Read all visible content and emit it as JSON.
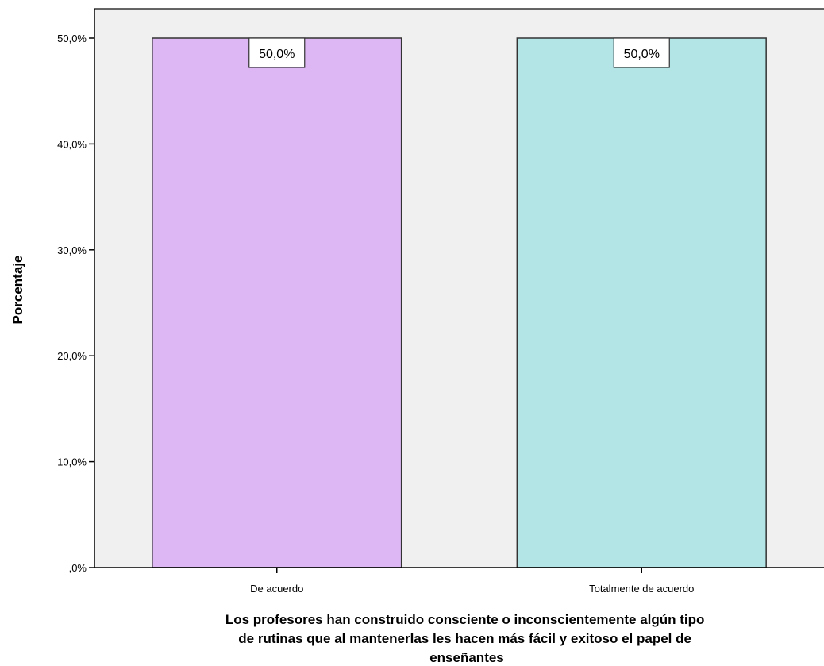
{
  "chart_data": {
    "type": "bar",
    "categories": [
      "De acuerdo",
      "Totalmente de acuerdo"
    ],
    "values": [
      50.0,
      50.0
    ],
    "data_labels": [
      "50,0%",
      "50,0%"
    ],
    "ylabel": "Porcentaje",
    "xlabel_lines": [
      "Los profesores han construido consciente o inconscientemente algún tipo",
      "de rutinas que al mantenerlas les hacen más fácil y exitoso el papel de",
      "enseñantes"
    ],
    "ylim": [
      0,
      50
    ],
    "yticks": [
      0,
      10,
      20,
      30,
      40,
      50
    ],
    "ytick_labels": [
      ",0%",
      "10,0%",
      "20,0%",
      "30,0%",
      "40,0%",
      "50,0%"
    ],
    "grid": false,
    "colors": {
      "plot_background": "#f0f0f0",
      "bars": [
        "#dcb7f3",
        "#b3e5e7"
      ],
      "bar_outline": "#333333",
      "axis": "#000000"
    }
  }
}
